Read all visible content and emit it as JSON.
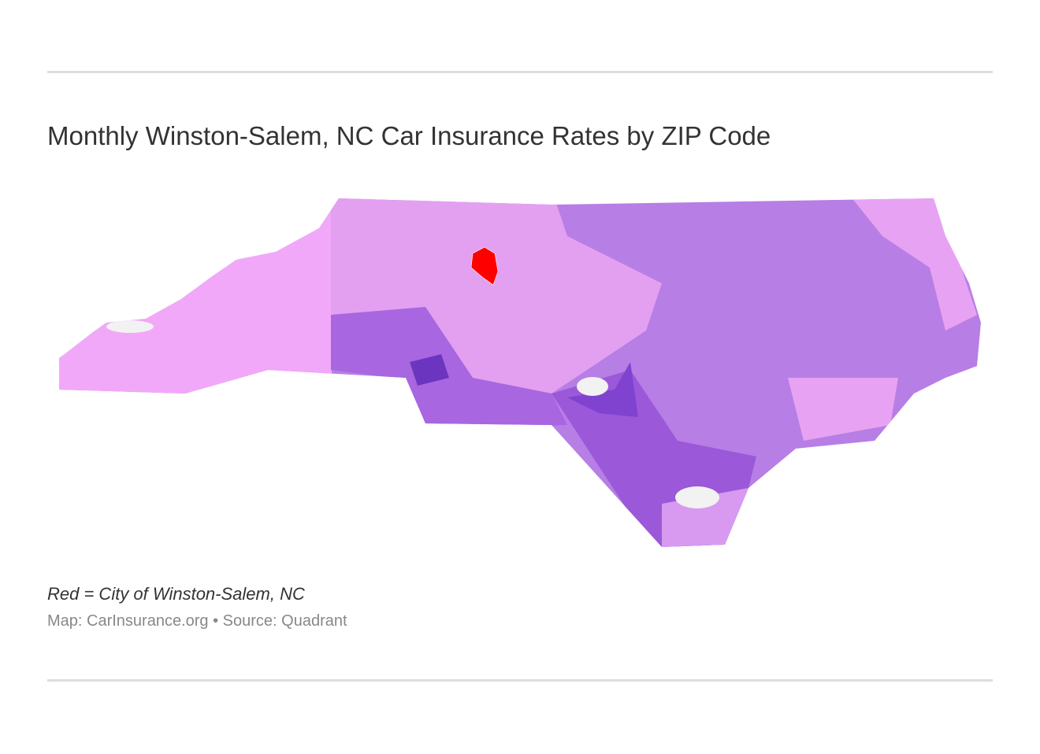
{
  "header": {
    "title": "Monthly Winston-Salem, NC Car Insurance Rates by ZIP Code"
  },
  "notes": {
    "legend": "Red = City of Winston-Salem, NC",
    "credit": "Map: CarInsurance.org • Source: Quadrant"
  }
}
